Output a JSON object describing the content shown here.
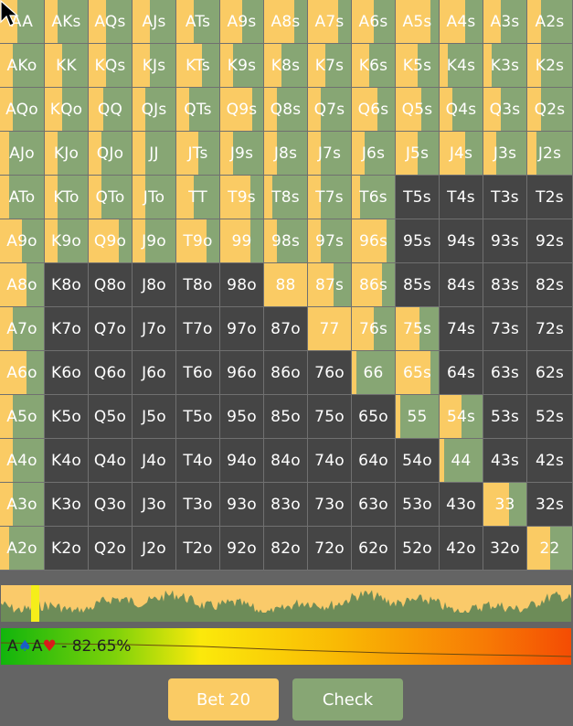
{
  "colors": {
    "bet": "#facb64",
    "check": "#87a674",
    "inactive": "#454545",
    "action_bar_bg": "#6d8c58"
  },
  "hand_grid": {
    "rows": [
      [
        [
          "AA",
          0.4
        ],
        [
          "AKs",
          0.3
        ],
        [
          "AQs",
          0.4
        ],
        [
          "AJs",
          0.4
        ],
        [
          "ATs",
          0.4
        ],
        [
          "A9s",
          0.5
        ],
        [
          "A8s",
          0.7
        ],
        [
          "A7s",
          0.7
        ],
        [
          "A6s",
          0.5
        ],
        [
          "A5s",
          0.8
        ],
        [
          "A4s",
          0.6
        ],
        [
          "A3s",
          0.4
        ],
        [
          "A2s",
          0.3
        ]
      ],
      [
        [
          "AKo",
          0.3
        ],
        [
          "KK",
          0.4
        ],
        [
          "KQs",
          0.4
        ],
        [
          "KJs",
          0.4
        ],
        [
          "KTs",
          0.6
        ],
        [
          "K9s",
          0.3
        ],
        [
          "K8s",
          0.4
        ],
        [
          "K7s",
          0.4
        ],
        [
          "K6s",
          0.4
        ],
        [
          "K5s",
          0.5
        ],
        [
          "K4s",
          0.2
        ],
        [
          "K3s",
          0.2
        ],
        [
          "K2s",
          0.3
        ]
      ],
      [
        [
          "AQo",
          0.3
        ],
        [
          "KQo",
          0.4
        ],
        [
          "QQ",
          0.35
        ],
        [
          "QJs",
          0.3
        ],
        [
          "QTs",
          0.3
        ],
        [
          "Q9s",
          0.75
        ],
        [
          "Q8s",
          0.3
        ],
        [
          "Q7s",
          0.3
        ],
        [
          "Q6s",
          0.6
        ],
        [
          "Q5s",
          0.6
        ],
        [
          "Q4s",
          0.3
        ],
        [
          "Q3s",
          0.4
        ],
        [
          "Q2s",
          0.3
        ]
      ],
      [
        [
          "AJo",
          0.2
        ],
        [
          "KJo",
          0.3
        ],
        [
          "QJo",
          0.3
        ],
        [
          "JJ",
          0.3
        ],
        [
          "JTs",
          0.5
        ],
        [
          "J9s",
          0.3
        ],
        [
          "J8s",
          0.3
        ],
        [
          "J7s",
          0.3
        ],
        [
          "J6s",
          0.3
        ],
        [
          "J5s",
          0.5
        ],
        [
          "J4s",
          0.6
        ],
        [
          "J3s",
          0.3
        ],
        [
          "J2s",
          0.2
        ]
      ],
      [
        [
          "ATo",
          0.2
        ],
        [
          "KTo",
          0.3
        ],
        [
          "QTo",
          0.3
        ],
        [
          "JTo",
          0.3
        ],
        [
          "TT",
          0.4
        ],
        [
          "T9s",
          0.7
        ],
        [
          "T8s",
          0.2
        ],
        [
          "T7s",
          0.3
        ],
        [
          "T6s",
          0.2
        ],
        [
          "T5s",
          0
        ],
        [
          "T4s",
          0
        ],
        [
          "T3s",
          0
        ],
        [
          "T2s",
          0
        ]
      ],
      [
        [
          "A9o",
          0.5
        ],
        [
          "K9o",
          0.3
        ],
        [
          "Q9o",
          0.7
        ],
        [
          "J9o",
          0.3
        ],
        [
          "T9o",
          0.7
        ],
        [
          "99",
          0.7
        ],
        [
          "98s",
          0.3
        ],
        [
          "97s",
          0.3
        ],
        [
          "96s",
          0.8
        ],
        [
          "95s",
          0
        ],
        [
          "94s",
          0
        ],
        [
          "93s",
          0
        ],
        [
          "92s",
          0
        ]
      ],
      [
        [
          "A8o",
          0.6
        ],
        [
          "K8o",
          0
        ],
        [
          "Q8o",
          0
        ],
        [
          "J8o",
          0
        ],
        [
          "T8o",
          0
        ],
        [
          "98o",
          0
        ],
        [
          "88",
          1.0
        ],
        [
          "87s",
          0.6
        ],
        [
          "86s",
          0.7
        ],
        [
          "85s",
          0
        ],
        [
          "84s",
          0
        ],
        [
          "83s",
          0
        ],
        [
          "82s",
          0
        ]
      ],
      [
        [
          "A7o",
          0.3
        ],
        [
          "K7o",
          0
        ],
        [
          "Q7o",
          0
        ],
        [
          "J7o",
          0
        ],
        [
          "T7o",
          0
        ],
        [
          "97o",
          0
        ],
        [
          "87o",
          0
        ],
        [
          "77",
          1.0
        ],
        [
          "76s",
          0.5
        ],
        [
          "75s",
          0.55
        ],
        [
          "74s",
          0
        ],
        [
          "73s",
          0
        ],
        [
          "72s",
          0
        ]
      ],
      [
        [
          "A6o",
          0.6
        ],
        [
          "K6o",
          0
        ],
        [
          "Q6o",
          0
        ],
        [
          "J6o",
          0
        ],
        [
          "T6o",
          0
        ],
        [
          "96o",
          0
        ],
        [
          "86o",
          0
        ],
        [
          "76o",
          0
        ],
        [
          "66",
          0.1
        ],
        [
          "65s",
          0.8
        ],
        [
          "64s",
          0
        ],
        [
          "63s",
          0
        ],
        [
          "62s",
          0
        ]
      ],
      [
        [
          "A5o",
          0.3
        ],
        [
          "K5o",
          0
        ],
        [
          "Q5o",
          0
        ],
        [
          "J5o",
          0
        ],
        [
          "T5o",
          0
        ],
        [
          "95o",
          0
        ],
        [
          "85o",
          0
        ],
        [
          "75o",
          0
        ],
        [
          "65o",
          0
        ],
        [
          "55",
          0.1
        ],
        [
          "54s",
          0.5
        ],
        [
          "53s",
          0
        ],
        [
          "52s",
          0
        ]
      ],
      [
        [
          "A4o",
          0.3
        ],
        [
          "K4o",
          0
        ],
        [
          "Q4o",
          0
        ],
        [
          "J4o",
          0
        ],
        [
          "T4o",
          0
        ],
        [
          "94o",
          0
        ],
        [
          "84o",
          0
        ],
        [
          "74o",
          0
        ],
        [
          "64o",
          0
        ],
        [
          "54o",
          0
        ],
        [
          "44",
          0.1
        ],
        [
          "43s",
          0
        ],
        [
          "42s",
          0
        ]
      ],
      [
        [
          "A3o",
          0.3
        ],
        [
          "K3o",
          0
        ],
        [
          "Q3o",
          0
        ],
        [
          "J3o",
          0
        ],
        [
          "T3o",
          0
        ],
        [
          "93o",
          0
        ],
        [
          "83o",
          0
        ],
        [
          "73o",
          0
        ],
        [
          "63o",
          0
        ],
        [
          "53o",
          0
        ],
        [
          "43o",
          0
        ],
        [
          "33",
          0.6
        ],
        [
          "32s",
          0
        ]
      ],
      [
        [
          "A2o",
          0.2
        ],
        [
          "K2o",
          0
        ],
        [
          "Q2o",
          0
        ],
        [
          "J2o",
          0
        ],
        [
          "T2o",
          0
        ],
        [
          "92o",
          0
        ],
        [
          "82o",
          0
        ],
        [
          "72o",
          0
        ],
        [
          "62o",
          0
        ],
        [
          "52o",
          0
        ],
        [
          "42o",
          0
        ],
        [
          "32o",
          0
        ],
        [
          "22",
          0.5
        ]
      ]
    ]
  },
  "equity": {
    "hand_rank1": "A",
    "suit1": "♠",
    "hand_rank2": "A",
    "suit2": "♥",
    "separator": " - ",
    "value": "82.65%"
  },
  "buttons": {
    "bet_label": "Bet 20",
    "check_label": "Check"
  }
}
